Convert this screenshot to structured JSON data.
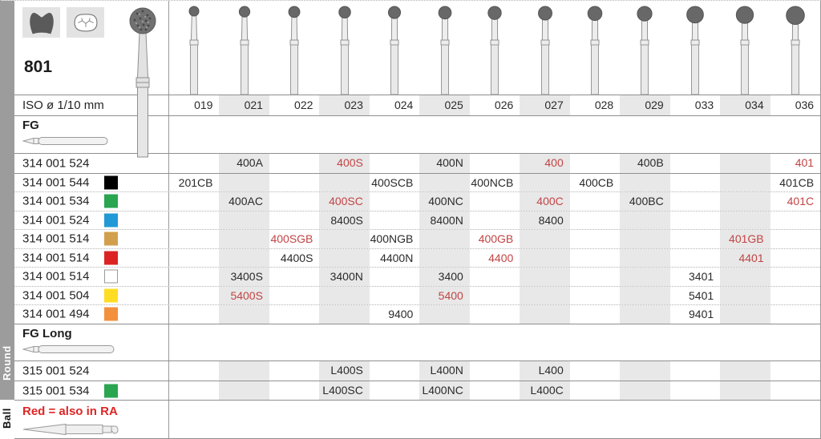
{
  "side": {
    "round_label": "Round",
    "ball_label": "Ball"
  },
  "panel": {
    "product_number": "801",
    "iso_label": "ISO ø 1/10 mm",
    "fg_label": "FG",
    "fg_long_label": "FG Long",
    "red_note": "Red = also in RA"
  },
  "colors": {
    "code_red": "#c24444",
    "note_red": "#df2525",
    "stripe": "#e8e8e8"
  },
  "table": {
    "sizes": [
      "019",
      "021",
      "022",
      "023",
      "024",
      "025",
      "026",
      "027",
      "028",
      "029",
      "033",
      "034",
      "036"
    ],
    "shaded_columns": [
      "021",
      "023",
      "025",
      "027",
      "029",
      "034"
    ],
    "fg_rows": [
      {
        "iso": "314 001 524",
        "color": null,
        "cells": [
          null,
          {
            "code": "400A"
          },
          null,
          {
            "code": "400S",
            "red": true
          },
          null,
          {
            "code": "400N"
          },
          null,
          {
            "code": "400",
            "red": true
          },
          null,
          {
            "code": "400B"
          },
          null,
          null,
          {
            "code": "401",
            "red": true
          }
        ]
      },
      {
        "iso": "314 001 544",
        "color": "#000000",
        "cells": [
          {
            "code": "201CB"
          },
          null,
          null,
          null,
          {
            "code": "400SCB"
          },
          null,
          {
            "code": "400NCB"
          },
          null,
          {
            "code": "400CB"
          },
          null,
          null,
          null,
          {
            "code": "401CB"
          }
        ]
      },
      {
        "iso": "314 001 534",
        "color": "#2aa550",
        "cells": [
          null,
          {
            "code": "400AC"
          },
          null,
          {
            "code": "400SC",
            "red": true
          },
          null,
          {
            "code": "400NC"
          },
          null,
          {
            "code": "400C",
            "red": true
          },
          null,
          {
            "code": "400BC"
          },
          null,
          null,
          {
            "code": "401C",
            "red": true
          }
        ]
      },
      {
        "iso": "314 001 524",
        "color": "#2199d6",
        "cells": [
          null,
          null,
          null,
          {
            "code": "8400S"
          },
          null,
          {
            "code": "8400N"
          },
          null,
          {
            "code": "8400"
          },
          null,
          null,
          null,
          null,
          null
        ]
      },
      {
        "iso": "314 001 514",
        "color": "#d2a04c",
        "cells": [
          null,
          null,
          {
            "code": "400SGB",
            "red": true
          },
          null,
          {
            "code": "400NGB"
          },
          null,
          {
            "code": "400GB",
            "red": true
          },
          null,
          null,
          null,
          null,
          {
            "code": "401GB",
            "red": true
          },
          null
        ]
      },
      {
        "iso": "314 001 514",
        "color": "#dc2323",
        "cells": [
          null,
          null,
          {
            "code": "4400S"
          },
          null,
          {
            "code": "4400N"
          },
          null,
          {
            "code": "4400",
            "red": true
          },
          null,
          null,
          null,
          null,
          {
            "code": "4401",
            "red": true
          },
          null
        ]
      },
      {
        "iso": "314 001 514",
        "color": "#ffffff",
        "cells": [
          null,
          {
            "code": "3400S"
          },
          null,
          {
            "code": "3400N"
          },
          null,
          {
            "code": "3400"
          },
          null,
          null,
          null,
          null,
          {
            "code": "3401"
          },
          null,
          null
        ]
      },
      {
        "iso": "314 001 504",
        "color": "#ffdd22",
        "cells": [
          null,
          {
            "code": "5400S",
            "red": true
          },
          null,
          null,
          null,
          {
            "code": "5400",
            "red": true
          },
          null,
          null,
          null,
          null,
          {
            "code": "5401"
          },
          null,
          null
        ]
      },
      {
        "iso": "314 001 494",
        "color": "#f2903e",
        "cells": [
          null,
          null,
          null,
          null,
          {
            "code": "9400"
          },
          null,
          null,
          null,
          null,
          null,
          {
            "code": "9401"
          },
          null,
          null
        ]
      }
    ],
    "fg_long_rows": [
      {
        "iso": "315 001 524",
        "color": null,
        "cells": [
          null,
          null,
          null,
          {
            "code": "L400S"
          },
          null,
          {
            "code": "L400N"
          },
          null,
          {
            "code": "L400"
          },
          null,
          null,
          null,
          null,
          null
        ]
      },
      {
        "iso": "315 001 534",
        "color": "#2aa550",
        "cells": [
          null,
          null,
          null,
          {
            "code": "L400SC"
          },
          null,
          {
            "code": "L400NC"
          },
          null,
          {
            "code": "L400C"
          },
          null,
          null,
          null,
          null,
          null
        ]
      }
    ]
  }
}
